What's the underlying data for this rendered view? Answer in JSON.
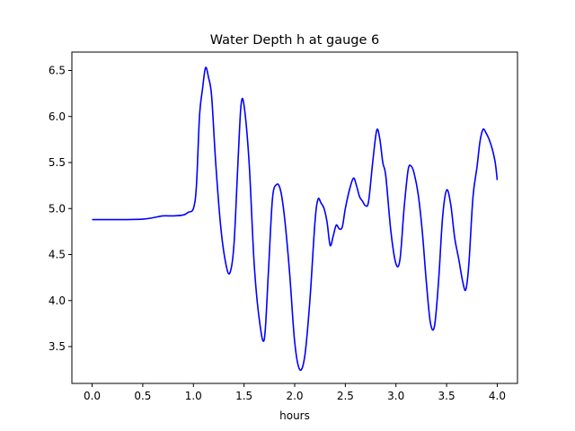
{
  "chart_data": {
    "type": "line",
    "title": "Water Depth h at gauge 6",
    "xlabel": "hours",
    "ylabel": "",
    "xlim": [
      -0.2,
      4.2
    ],
    "ylim": [
      3.1,
      6.7
    ],
    "grid": false,
    "xticks": [
      0.0,
      0.5,
      1.0,
      1.5,
      2.0,
      2.5,
      3.0,
      3.5,
      4.0
    ],
    "xtick_labels": [
      "0.0",
      "0.5",
      "1.0",
      "1.5",
      "2.0",
      "2.5",
      "3.0",
      "3.5",
      "4.0"
    ],
    "yticks": [
      3.5,
      4.0,
      4.5,
      5.0,
      5.5,
      6.0,
      6.5
    ],
    "ytick_labels": [
      "3.5",
      "4.0",
      "4.5",
      "5.0",
      "5.5",
      "6.0",
      "6.5"
    ],
    "series": [
      {
        "color": "#0000ff",
        "x": [
          0.0,
          0.3,
          0.5,
          0.6,
          0.7,
          0.8,
          0.9,
          0.95,
          1.0,
          1.03,
          1.06,
          1.09,
          1.12,
          1.15,
          1.18,
          1.22,
          1.27,
          1.32,
          1.36,
          1.4,
          1.44,
          1.47,
          1.5,
          1.55,
          1.6,
          1.65,
          1.7,
          1.74,
          1.78,
          1.82,
          1.86,
          1.9,
          1.95,
          2.0,
          2.05,
          2.1,
          2.15,
          2.2,
          2.23,
          2.26,
          2.29,
          2.32,
          2.35,
          2.38,
          2.41,
          2.44,
          2.47,
          2.5,
          2.54,
          2.58,
          2.61,
          2.64,
          2.67,
          2.7,
          2.73,
          2.77,
          2.81,
          2.84,
          2.87,
          2.9,
          2.95,
          3.0,
          3.04,
          3.08,
          3.12,
          3.15,
          3.18,
          3.22,
          3.26,
          3.3,
          3.34,
          3.38,
          3.42,
          3.46,
          3.5,
          3.54,
          3.58,
          3.62,
          3.66,
          3.69,
          3.72,
          3.76,
          3.8,
          3.83,
          3.86,
          3.89,
          3.92,
          3.95,
          3.98,
          4.0
        ],
        "y": [
          4.88,
          4.88,
          4.885,
          4.9,
          4.92,
          4.92,
          4.93,
          4.96,
          5.0,
          5.25,
          6.0,
          6.3,
          6.53,
          6.42,
          6.22,
          5.5,
          4.8,
          4.4,
          4.3,
          4.6,
          5.5,
          6.12,
          6.12,
          5.5,
          4.4,
          3.8,
          3.58,
          4.3,
          5.1,
          5.26,
          5.2,
          4.9,
          4.3,
          3.55,
          3.25,
          3.4,
          4.0,
          4.85,
          5.1,
          5.06,
          5.0,
          4.85,
          4.6,
          4.7,
          4.82,
          4.78,
          4.8,
          5.0,
          5.2,
          5.33,
          5.25,
          5.13,
          5.08,
          5.03,
          5.08,
          5.5,
          5.85,
          5.76,
          5.5,
          5.35,
          4.75,
          4.4,
          4.45,
          5.0,
          5.42,
          5.46,
          5.38,
          5.15,
          4.75,
          4.2,
          3.76,
          3.72,
          4.2,
          4.9,
          5.2,
          5.05,
          4.68,
          4.45,
          4.2,
          4.12,
          4.4,
          5.12,
          5.45,
          5.73,
          5.86,
          5.82,
          5.75,
          5.65,
          5.5,
          5.31
        ]
      }
    ]
  }
}
